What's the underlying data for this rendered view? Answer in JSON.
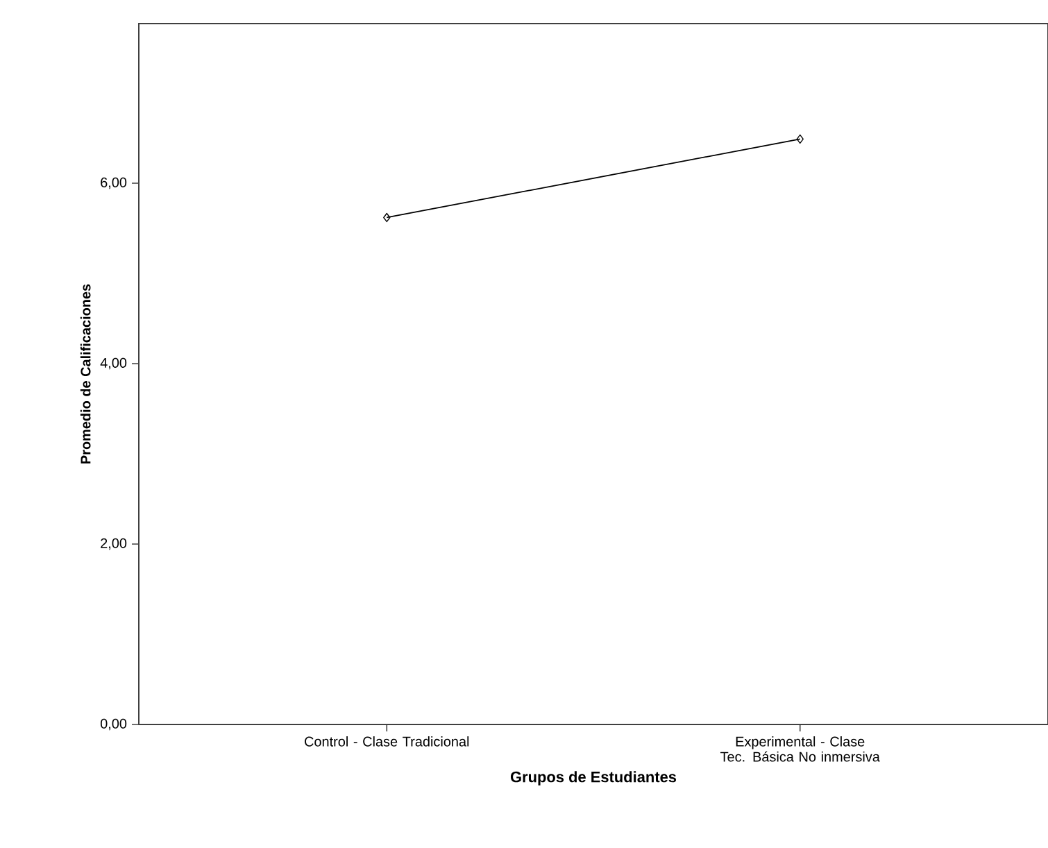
{
  "chart_data": {
    "type": "line",
    "xlabel": "Grupos de Estudiantes",
    "ylabel": "Promedio de Calificaciones",
    "categories": [
      "Control - Clase Tradicional",
      "Experimental - Clase Tec. Básica No inmersiva"
    ],
    "series": [
      {
        "color": "#000000",
        "values": [
          5.62,
          6.49
        ]
      }
    ],
    "ylim": [
      0,
      7.77
    ],
    "yticks": [
      {
        "value": 0,
        "label": "0,00"
      },
      {
        "value": 2,
        "label": "2,00"
      },
      {
        "value": 4,
        "label": "4,00"
      },
      {
        "value": 6,
        "label": "6,00"
      }
    ],
    "grid": false,
    "marker": "diamond",
    "line_style": "solid"
  }
}
